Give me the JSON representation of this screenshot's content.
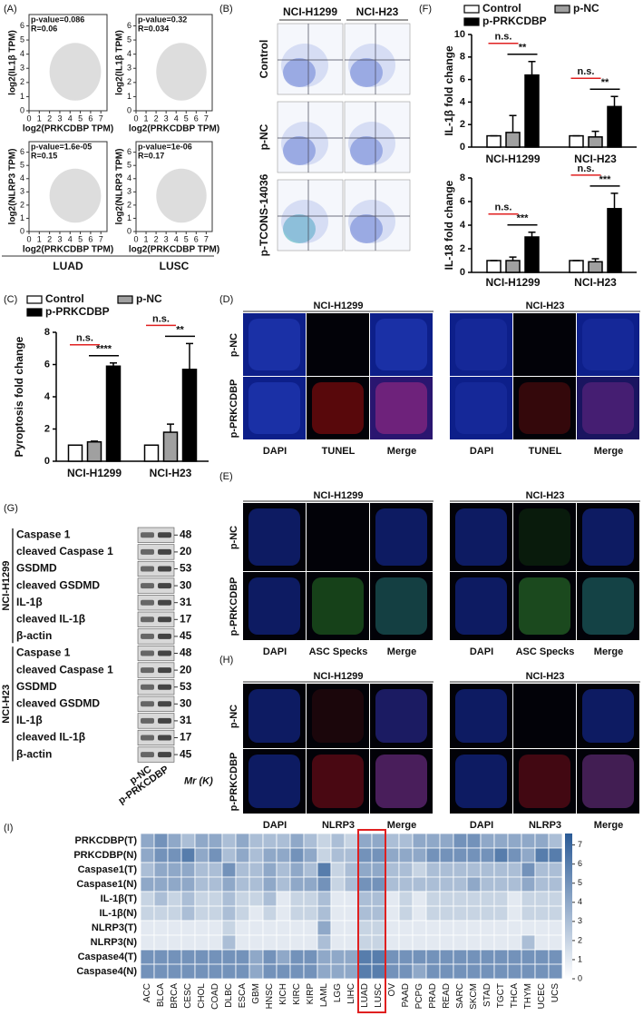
{
  "panel_a": {
    "label": "(A)",
    "cohorts": [
      "LUAD",
      "LUSC"
    ]
  },
  "panel_b": {
    "label": "(B)",
    "columns": [
      "NCI-H1299",
      "NCI-H23"
    ],
    "rows": [
      "Control",
      "p-NC",
      "p-TCONS-14036"
    ]
  },
  "panel_d": {
    "label": "(D)",
    "groups": [
      "NCI-H1299",
      "NCI-H23"
    ],
    "rows": [
      "p-NC",
      "p-PRKCDBP"
    ],
    "channels": [
      "DAPI",
      "TUNEL",
      "Merge"
    ]
  },
  "panel_e": {
    "label": "(E)",
    "groups": [
      "NCI-H1299",
      "NCI-H23"
    ],
    "rows": [
      "p-NC",
      "p-PRKCDBP"
    ],
    "channels": [
      "DAPI",
      "ASC Specks",
      "Merge"
    ]
  },
  "panel_h": {
    "label": "(H)",
    "groups": [
      "NCI-H1299",
      "NCI-H23"
    ],
    "rows": [
      "p-NC",
      "p-PRKCDBP"
    ],
    "channels": [
      "DAPI",
      "NLRP3",
      "Merge"
    ]
  },
  "panel_g": {
    "label": "(G)",
    "lanes": [
      "p-NC",
      "p-PRKCDBP"
    ],
    "mr_label": "Mr (K)",
    "groups": [
      {
        "name": "NCI-H1299",
        "rows": [
          {
            "protein": "Caspase 1",
            "mr": 48
          },
          {
            "protein": "cleaved Caspase 1",
            "mr": 20
          },
          {
            "protein": "GSDMD",
            "mr": 53
          },
          {
            "protein": "cleaved GSDMD",
            "mr": 30
          },
          {
            "protein": "IL-1β",
            "mr": 31
          },
          {
            "protein": "cleaved IL-1β",
            "mr": 17
          },
          {
            "protein": "β-actin",
            "mr": 45
          }
        ]
      },
      {
        "name": "NCI-H23",
        "rows": [
          {
            "protein": "Caspase 1",
            "mr": 48
          },
          {
            "protein": "cleaved Caspase 1",
            "mr": 20
          },
          {
            "protein": "GSDMD",
            "mr": 53
          },
          {
            "protein": "cleaved GSDMD",
            "mr": 30
          },
          {
            "protein": "IL-1β",
            "mr": 31
          },
          {
            "protein": "cleaved IL-1β",
            "mr": 17
          },
          {
            "protein": "β-actin",
            "mr": 45
          }
        ]
      }
    ]
  },
  "chart_data": [
    {
      "type": "scatter",
      "xlabel": "log2(PRKCDBP TPM)",
      "ylabel": "log2(IL1β TPM)",
      "annotations": [
        "p-value=0.086",
        "R=0.06"
      ],
      "annotation_color": "#e02020",
      "xlim": [
        0,
        7.6
      ],
      "ylim": [
        0,
        6.8
      ],
      "xticks": [
        0,
        1,
        2,
        3,
        4,
        5,
        6,
        7
      ],
      "yticks": [
        0,
        1,
        2,
        3,
        4,
        5,
        6
      ]
    },
    {
      "type": "scatter",
      "xlabel": "log2(PRKCDBP TPM)",
      "ylabel": "log2(IL1β TPM)",
      "annotations": [
        "p-value=0.32",
        "R=0.034"
      ],
      "annotation_color": "#e02020",
      "xlim": [
        0,
        7.6
      ],
      "ylim": [
        0,
        6.8
      ],
      "xticks": [
        0,
        1,
        2,
        3,
        4,
        5,
        6,
        7
      ],
      "yticks": [
        0,
        1,
        2,
        3,
        4,
        5,
        6
      ]
    },
    {
      "type": "scatter",
      "xlabel": "log2(PRKCDBP TPM)",
      "ylabel": "log2(NLRP3 TPM)",
      "annotations": [
        "p-value=1.6e-05",
        "R=0.15"
      ],
      "annotation_color": "#e02020",
      "xlim": [
        0,
        7.6
      ],
      "ylim": [
        0,
        6.8
      ],
      "xticks": [
        0,
        1,
        2,
        3,
        4,
        5,
        6,
        7
      ],
      "yticks": [
        0,
        1,
        2,
        3,
        4,
        5,
        6
      ]
    },
    {
      "type": "scatter",
      "xlabel": "log2(PRKCDBP TPM)",
      "ylabel": "log2(NLRP3 TPM)",
      "annotations": [
        "p-value=1e-06",
        "R=0.17"
      ],
      "annotation_color": "#e02020",
      "xlim": [
        0,
        7.6
      ],
      "ylim": [
        0,
        6.8
      ],
      "xticks": [
        0,
        1,
        2,
        3,
        4,
        5,
        6,
        7
      ],
      "yticks": [
        0,
        1,
        2,
        3,
        4,
        5,
        6
      ]
    },
    {
      "type": "bar",
      "panel_label": "(F)",
      "ylabel": "IL-1β fold change",
      "legend": "top",
      "categories": [
        "NCI-H1299",
        "NCI-H23"
      ],
      "series": [
        {
          "name": "Control",
          "color": "#ffffff",
          "values": [
            1,
            1
          ],
          "errors": [
            0,
            0
          ]
        },
        {
          "name": "p-NC",
          "color": "#a0a0a0",
          "values": [
            1.3,
            0.9
          ],
          "errors": [
            1.5,
            0.5
          ]
        },
        {
          "name": "p-PRKCDBP",
          "color": "#000000",
          "values": [
            6.4,
            3.6
          ],
          "errors": [
            1.2,
            0.9
          ]
        }
      ],
      "significance": [
        [
          "n.s.",
          "**"
        ],
        [
          "n.s.",
          "**"
        ]
      ],
      "ylim": [
        0,
        10
      ],
      "yticks": [
        0,
        2,
        4,
        6,
        8,
        10
      ]
    },
    {
      "type": "bar",
      "ylabel": "IL-18 fold change",
      "categories": [
        "NCI-H1299",
        "NCI-H23"
      ],
      "series": [
        {
          "color": "#ffffff",
          "values": [
            1,
            1
          ],
          "errors": [
            0,
            0
          ]
        },
        {
          "color": "#a0a0a0",
          "values": [
            1,
            0.9
          ],
          "errors": [
            0.3,
            0.25
          ]
        },
        {
          "color": "#000000",
          "values": [
            3,
            5.4
          ],
          "errors": [
            0.4,
            1.3
          ]
        }
      ],
      "significance": [
        [
          "n.s.",
          "***"
        ],
        [
          "n.s.",
          "***"
        ]
      ],
      "ylim": [
        0,
        8
      ],
      "yticks": [
        0,
        2,
        4,
        6,
        8
      ]
    },
    {
      "type": "bar",
      "panel_label": "(C)",
      "ylabel": "Pyroptosis fold change",
      "legend": "top",
      "categories": [
        "NCI-H1299",
        "NCI-H23"
      ],
      "series": [
        {
          "name": "Control",
          "color": "#ffffff",
          "values": [
            1,
            1
          ],
          "errors": [
            0,
            0
          ]
        },
        {
          "name": "p-NC",
          "color": "#a0a0a0",
          "values": [
            1.2,
            1.8
          ],
          "errors": [
            0.05,
            0.5
          ]
        },
        {
          "name": "p-PRKCDBP",
          "color": "#000000",
          "values": [
            5.9,
            5.7
          ],
          "errors": [
            0.2,
            1.6
          ]
        }
      ],
      "significance": [
        [
          "n.s.",
          "****"
        ],
        [
          "n.s.",
          "**"
        ]
      ],
      "ylim": [
        0,
        8
      ],
      "yticks": [
        0,
        2,
        4,
        6,
        8
      ]
    },
    {
      "type": "heatmap",
      "panel_label": "(I)",
      "categories": [
        "ACC",
        "BLCA",
        "BRCA",
        "CESC",
        "CHOL",
        "COAD",
        "DLBC",
        "ESCA",
        "GBM",
        "HNSC",
        "KICH",
        "KIRC",
        "KIRP",
        "LAML",
        "LGG",
        "LIHC",
        "LUAD",
        "LUSC",
        "OV",
        "PAAD",
        "PCPG",
        "PRAD",
        "READ",
        "SARC",
        "SKCM",
        "STAD",
        "TGCT",
        "THCA",
        "THYM",
        "UCEC",
        "UCS"
      ],
      "rows": [
        "PRKCDBP(T)",
        "PRKCDBP(N)",
        "Caspase1(T)",
        "Caspase1(N)",
        "IL-1β(T)",
        "IL-1β(N)",
        "NLRP3(T)",
        "NLRP3(N)",
        "Caspase4(T)",
        "Caspase4(N)"
      ],
      "values": [
        [
          4,
          5,
          4,
          3,
          4,
          4,
          3,
          4,
          3,
          3,
          3,
          4,
          3,
          2,
          3,
          2,
          4,
          4,
          3,
          3,
          4,
          4,
          4,
          5,
          5,
          4,
          4,
          4,
          4,
          4,
          3
        ],
        [
          4,
          5,
          5,
          6,
          4,
          5,
          3,
          4,
          3,
          4,
          4,
          5,
          4,
          2,
          3,
          3,
          5,
          5,
          4,
          4,
          4,
          5,
          5,
          5,
          5,
          5,
          6,
          5,
          4,
          6,
          6
        ],
        [
          3,
          4,
          4,
          4,
          3,
          3,
          5,
          3,
          3,
          4,
          3,
          4,
          3,
          6,
          2,
          3,
          4,
          4,
          3,
          3,
          2,
          3,
          3,
          3,
          3,
          3,
          3,
          3,
          5,
          3,
          3
        ],
        [
          4,
          4,
          4,
          4,
          3,
          3,
          4,
          3,
          3,
          4,
          3,
          4,
          4,
          5,
          2,
          3,
          5,
          5,
          3,
          3,
          3,
          3,
          3,
          3,
          4,
          3,
          3,
          3,
          4,
          3,
          3
        ],
        [
          2,
          3,
          2,
          3,
          2,
          2,
          3,
          2,
          2,
          3,
          1,
          2,
          2,
          3,
          1,
          1,
          3,
          3,
          1,
          2,
          1,
          2,
          2,
          2,
          2,
          2,
          2,
          1,
          2,
          2,
          2
        ],
        [
          2,
          2,
          2,
          3,
          2,
          2,
          3,
          2,
          1,
          2,
          1,
          2,
          2,
          3,
          1,
          1,
          3,
          3,
          1,
          2,
          1,
          2,
          2,
          2,
          2,
          2,
          2,
          1,
          2,
          2,
          2
        ],
        [
          1,
          1,
          1,
          1,
          1,
          1,
          2,
          1,
          1,
          1,
          1,
          1,
          1,
          4,
          1,
          1,
          2,
          2,
          1,
          1,
          1,
          1,
          1,
          1,
          1,
          1,
          1,
          1,
          1,
          1,
          1
        ],
        [
          1,
          1,
          1,
          1,
          1,
          1,
          3,
          1,
          1,
          1,
          1,
          1,
          1,
          3,
          1,
          1,
          2,
          2,
          1,
          1,
          1,
          1,
          1,
          1,
          1,
          1,
          1,
          1,
          3,
          1,
          1
        ],
        [
          5,
          5,
          5,
          5,
          5,
          5,
          5,
          5,
          4,
          5,
          4,
          5,
          5,
          4,
          4,
          4,
          6,
          6,
          5,
          5,
          5,
          5,
          5,
          5,
          5,
          5,
          5,
          5,
          5,
          5,
          5
        ],
        [
          5,
          5,
          5,
          5,
          5,
          5,
          5,
          5,
          4,
          5,
          5,
          5,
          5,
          4,
          4,
          4,
          6,
          6,
          5,
          5,
          4,
          5,
          5,
          5,
          5,
          5,
          5,
          5,
          5,
          5,
          5
        ]
      ],
      "low_color": "#ffffff",
      "high_color": "#2a5a96",
      "highlight": [
        "LUAD",
        "LUSC"
      ],
      "highlight_color": "#e02020",
      "zlim": [
        0,
        7.6
      ],
      "zticks": [
        0,
        1,
        2,
        3,
        4,
        5,
        6,
        7
      ]
    }
  ]
}
